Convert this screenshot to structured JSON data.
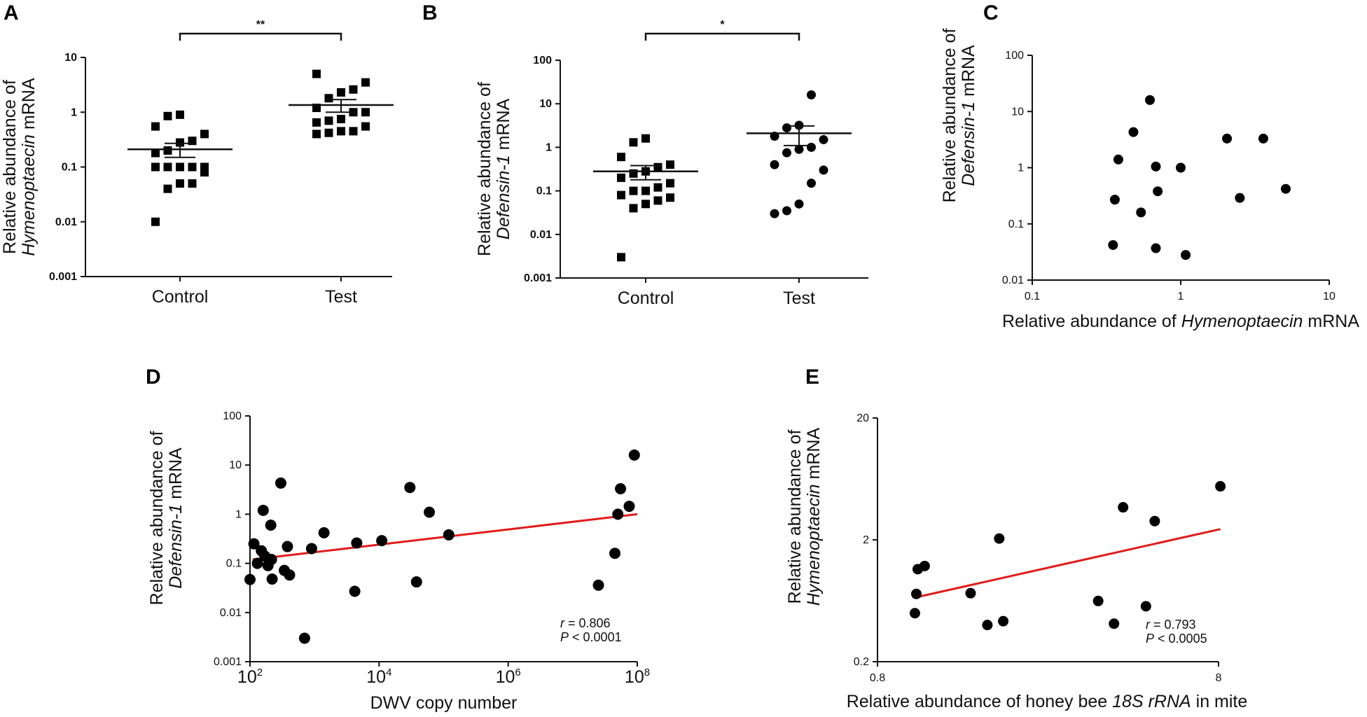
{
  "chart_data": [
    {
      "panel": "A",
      "type": "scatter",
      "ylabel": "Relative abundance of Hymenoptaecin mRNA",
      "ylabel_lines": [
        "Relative abundance of",
        "Hymenoptaecin",
        " mRNA"
      ],
      "yscale": "log",
      "ylim": [
        0.001,
        10
      ],
      "yticks": [
        "0.001",
        "0.01",
        "0.1",
        "1",
        "10"
      ],
      "categories": [
        "Control",
        "Test"
      ],
      "significance": "**",
      "groups": [
        {
          "name": "Control",
          "marker": "square",
          "mean": 0.21,
          "sem_low": 0.15,
          "sem_high": 0.27,
          "values": [
            0.85,
            0.9,
            0.55,
            0.4,
            0.3,
            0.28,
            0.2,
            0.18,
            0.1,
            0.1,
            0.1,
            0.1,
            0.1,
            0.08,
            0.05,
            0.05,
            0.04,
            0.01
          ]
        },
        {
          "name": "Test",
          "marker": "square",
          "mean": 1.35,
          "sem_low": 1.0,
          "sem_high": 1.7,
          "values": [
            5.0,
            3.5,
            2.6,
            2.3,
            1.8,
            1.2,
            1.0,
            1.0,
            0.75,
            0.7,
            0.65,
            0.55,
            0.45,
            0.45,
            0.42,
            0.4
          ]
        }
      ]
    },
    {
      "panel": "B",
      "type": "scatter",
      "ylabel": "Relative abundance of Defensin-1 mRNA",
      "ylabel_lines": [
        "Relative abundance of",
        "Defensin-1",
        " mRNA"
      ],
      "yscale": "log",
      "ylim": [
        0.001,
        100
      ],
      "yticks": [
        "0.001",
        "0.01",
        "0.1",
        "1",
        "10",
        "100"
      ],
      "categories": [
        "Control",
        "Test"
      ],
      "significance": "*",
      "groups": [
        {
          "name": "Control",
          "marker": "square",
          "mean": 0.28,
          "sem_low": 0.18,
          "sem_high": 0.38,
          "values": [
            1.6,
            1.3,
            0.6,
            0.4,
            0.35,
            0.28,
            0.25,
            0.2,
            0.15,
            0.12,
            0.1,
            0.1,
            0.08,
            0.07,
            0.06,
            0.05,
            0.04,
            0.003
          ]
        },
        {
          "name": "Test",
          "marker": "circle",
          "mean": 2.1,
          "sem_low": 1.1,
          "sem_high": 3.1,
          "values": [
            16,
            3.2,
            2.8,
            1.8,
            1.5,
            1.0,
            0.9,
            0.75,
            0.4,
            0.3,
            0.15,
            0.05,
            0.035,
            0.03
          ]
        }
      ]
    },
    {
      "panel": "C",
      "type": "scatter",
      "xlabel": "Relative abundance of Hymenoptaecin mRNA",
      "xlabel_parts": [
        "Relative abundance of ",
        "Hymenoptaecin",
        " mRNA"
      ],
      "ylabel": "Relative abundance of Defensin-1 mRNA",
      "ylabel_lines": [
        "Relative abundance of",
        "Defensin-1",
        " mRNA"
      ],
      "xscale": "log",
      "yscale": "log",
      "xlim": [
        0.1,
        10
      ],
      "ylim": [
        0.01,
        100
      ],
      "xticks": [
        "0.1",
        "1",
        "10"
      ],
      "yticks": [
        "0.01",
        "0.1",
        "1",
        "10",
        "100"
      ],
      "points": [
        [
          0.35,
          0.042
        ],
        [
          0.36,
          0.27
        ],
        [
          0.38,
          1.4
        ],
        [
          0.48,
          4.3
        ],
        [
          0.54,
          0.16
        ],
        [
          0.62,
          16
        ],
        [
          0.68,
          0.037
        ],
        [
          0.68,
          1.05
        ],
        [
          0.7,
          0.38
        ],
        [
          1.0,
          1.0
        ],
        [
          1.08,
          0.028
        ],
        [
          2.05,
          3.3
        ],
        [
          2.5,
          0.29
        ],
        [
          3.6,
          3.3
        ],
        [
          5.1,
          0.42
        ]
      ]
    },
    {
      "panel": "D",
      "type": "scatter",
      "xlabel": "DWV copy number",
      "ylabel": "Relative abundance of Defensin-1 mRNA",
      "ylabel_lines": [
        "Relative abundance of",
        "Defensin-1",
        " mRNA"
      ],
      "xscale": "log",
      "yscale": "log",
      "xlim": [
        100,
        100000000
      ],
      "ylim": [
        0.001,
        100
      ],
      "xticks": [
        {
          "base": "10",
          "exp": "2"
        },
        {
          "base": "10",
          "exp": "4"
        },
        {
          "base": "10",
          "exp": "6"
        },
        {
          "base": "10",
          "exp": "8"
        }
      ],
      "yticks": [
        "0.001",
        "0.01",
        "0.1",
        "1",
        "10",
        "100"
      ],
      "annotation_r": "= 0.806",
      "annotation_p": "< 0.0001",
      "fit_line": {
        "x": [
          110,
          100000000
        ],
        "y": [
          0.12,
          1.0
        ],
        "color": "#e21b1b"
      },
      "points": [
        [
          100,
          0.047
        ],
        [
          115,
          0.25
        ],
        [
          130,
          0.1
        ],
        [
          150,
          0.18
        ],
        [
          160,
          1.2
        ],
        [
          170,
          0.14
        ],
        [
          190,
          0.09
        ],
        [
          210,
          0.6
        ],
        [
          215,
          0.12
        ],
        [
          220,
          0.048
        ],
        [
          300,
          4.3
        ],
        [
          340,
          0.072
        ],
        [
          380,
          0.22
        ],
        [
          410,
          0.058
        ],
        [
          700,
          0.003
        ],
        [
          900,
          0.2
        ],
        [
          1400,
          0.42
        ],
        [
          4200,
          0.027
        ],
        [
          4500,
          0.26
        ],
        [
          11000,
          0.29
        ],
        [
          30000,
          3.5
        ],
        [
          38000,
          0.042
        ],
        [
          60000,
          1.1
        ],
        [
          120000,
          0.38
        ],
        [
          25000000,
          0.036
        ],
        [
          45000000,
          0.16
        ],
        [
          50000000,
          1.0
        ],
        [
          55000000,
          3.3
        ],
        [
          75000000,
          1.45
        ],
        [
          90000000,
          16
        ]
      ]
    },
    {
      "panel": "E",
      "type": "scatter",
      "xlabel": "Relative abundance of honey bee 18S rRNA in mite",
      "xlabel_parts": [
        "Relative abundance of honey bee ",
        "18S rRNA",
        " in mite"
      ],
      "ylabel": "Relative abundance of Hymenoptaecin mRNA",
      "ylabel_lines": [
        "Relative abundance of",
        "Hymenoptaecin",
        " mRNA"
      ],
      "xscale": "log",
      "yscale": "log",
      "xlim": [
        0.8,
        8
      ],
      "ylim": [
        0.2,
        20
      ],
      "xticks": [
        "0.8",
        "8"
      ],
      "yticks": [
        "0.2",
        "2",
        "20"
      ],
      "annotation_r": "= 0.793",
      "annotation_p": "< 0.0005",
      "fit_line": {
        "x": [
          1.05,
          8.1
        ],
        "y": [
          0.68,
          2.45
        ],
        "color": "#e21b1b"
      },
      "points": [
        [
          1.03,
          0.5
        ],
        [
          1.04,
          0.72
        ],
        [
          1.05,
          1.15
        ],
        [
          1.1,
          1.22
        ],
        [
          1.5,
          0.73
        ],
        [
          1.68,
          0.4
        ],
        [
          1.82,
          2.05
        ],
        [
          1.87,
          0.43
        ],
        [
          3.55,
          0.63
        ],
        [
          3.95,
          0.41
        ],
        [
          4.2,
          3.7
        ],
        [
          4.9,
          0.57
        ],
        [
          5.2,
          2.85
        ],
        [
          8.1,
          5.5
        ]
      ]
    }
  ]
}
